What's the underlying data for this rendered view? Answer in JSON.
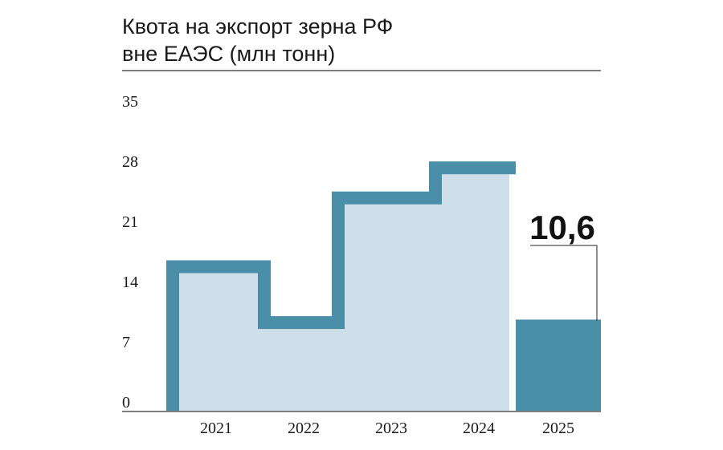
{
  "chart_data": {
    "type": "area",
    "title_lines": [
      "Квота на экспорт зерна РФ",
      "вне ЕАЭС (млн тонн)"
    ],
    "categories": [
      "2021",
      "2022",
      "2023",
      "2024",
      "2025"
    ],
    "values": [
      17.5,
      11,
      25.5,
      29,
      10.6
    ],
    "ylim": [
      0,
      35
    ],
    "yticks": [
      0,
      7,
      14,
      21,
      28,
      35
    ],
    "yticks_labels": [
      "0",
      "7",
      "14",
      "21",
      "28",
      "35"
    ],
    "highlight": {
      "category": "2025",
      "label": "10,6"
    },
    "colors": {
      "outline": "#4a8ea8",
      "fill": "#cfdfe9",
      "highlight": "#4a8ea8",
      "text": "#1a1a1a"
    }
  }
}
